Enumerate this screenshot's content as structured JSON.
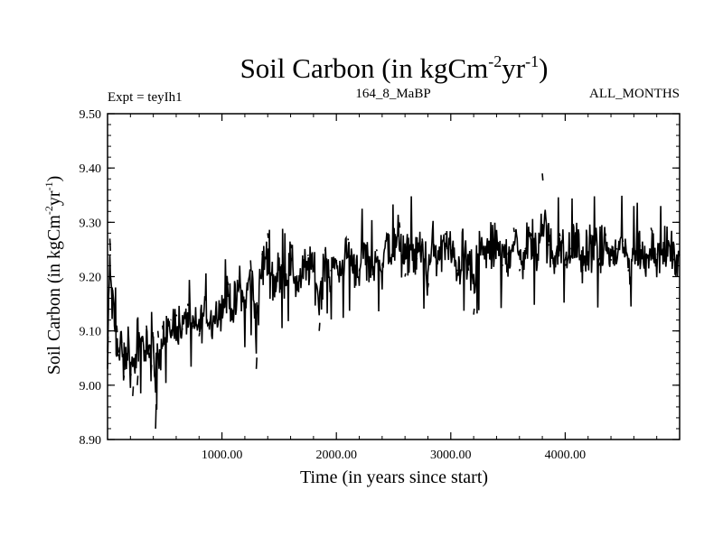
{
  "chart_data": {
    "type": "line",
    "title": "Soil Carbon (in kgCm-2yr-1)",
    "title_parts": {
      "base": "Soil Carbon (in kgCm",
      "sup1": "-2",
      "mid": "yr",
      "sup2": "-1",
      "end": ")"
    },
    "subtitle_left": "Expt = teyIh1",
    "subtitle_center": "164_8_MaBP",
    "subtitle_right": "ALL_MONTHS",
    "xlabel": "Time (in years since start)",
    "ylabel": "Soil Carbon (in kgCm-2yr-1)",
    "ylabel_parts": {
      "base": "Soil Carbon (in kgCm",
      "sup1": "-2",
      "mid": "yr",
      "sup2": "-1",
      "end": ")"
    },
    "xlim": [
      0,
      5000
    ],
    "ylim": [
      8.9,
      9.5
    ],
    "xticks": [
      1000,
      2000,
      3000,
      4000
    ],
    "xtick_labels": [
      "1000.00",
      "2000.00",
      "3000.00",
      "4000.00"
    ],
    "yticks": [
      8.9,
      9.0,
      9.1,
      9.2,
      9.3,
      9.4,
      9.5
    ],
    "ytick_labels": [
      "8.90",
      "9.00",
      "9.10",
      "9.20",
      "9.30",
      "9.40",
      "9.50"
    ],
    "grid": false,
    "legend": "none",
    "line_color": "#000000",
    "series": [
      {
        "x": [
          0,
          20,
          40,
          60,
          80,
          100,
          120,
          140,
          160,
          180,
          200,
          220,
          240,
          260,
          280,
          300,
          320,
          340,
          360,
          380,
          400,
          420,
          440,
          460,
          480,
          500,
          550,
          600,
          650,
          700,
          750,
          800,
          850,
          900,
          950,
          1000,
          1050,
          1100,
          1150,
          1200,
          1250,
          1300,
          1350,
          1400,
          1450,
          1500,
          1550,
          1600,
          1650,
          1700,
          1750,
          1800,
          1850,
          1900,
          1950,
          2000,
          2050,
          2100,
          2150,
          2200,
          2250,
          2300,
          2350,
          2400,
          2450,
          2500,
          2550,
          2600,
          2650,
          2700,
          2750,
          2800,
          2850,
          2900,
          2950,
          3000,
          3050,
          3100,
          3150,
          3200,
          3250,
          3300,
          3350,
          3400,
          3450,
          3500,
          3550,
          3600,
          3650,
          3700,
          3750,
          3800,
          3850,
          3900,
          3950,
          4000,
          4050,
          4100,
          4150,
          4200,
          4250,
          4300,
          4350,
          4400,
          4450,
          4500,
          4550,
          4600,
          4650,
          4700,
          4750,
          4800,
          4850,
          4900,
          4950,
          5000
        ],
        "y": [
          9.03,
          9.27,
          9.18,
          9.15,
          9.11,
          9.06,
          9.1,
          9.01,
          9.04,
          9.08,
          9.03,
          8.98,
          9.05,
          9.0,
          9.07,
          9.09,
          9.05,
          9.11,
          9.06,
          9.02,
          9.09,
          8.92,
          9.1,
          9.05,
          9.11,
          9.08,
          9.12,
          9.13,
          9.1,
          9.15,
          9.11,
          9.09,
          9.16,
          9.12,
          9.15,
          9.14,
          9.19,
          9.13,
          9.2,
          9.15,
          9.23,
          9.03,
          9.24,
          9.28,
          9.19,
          9.21,
          9.2,
          9.26,
          9.18,
          9.2,
          9.24,
          9.22,
          9.1,
          9.25,
          9.21,
          9.23,
          9.22,
          9.27,
          9.24,
          9.21,
          9.26,
          9.2,
          9.25,
          9.22,
          9.28,
          9.24,
          9.3,
          9.2,
          9.26,
          9.23,
          9.27,
          9.18,
          9.26,
          9.23,
          9.28,
          9.25,
          9.21,
          9.24,
          9.22,
          9.13,
          9.24,
          9.25,
          9.23,
          9.27,
          9.22,
          9.24,
          9.29,
          9.21,
          9.25,
          9.28,
          9.22,
          9.39,
          9.26,
          9.23,
          9.28,
          9.22,
          9.25,
          9.28,
          9.21,
          9.24,
          9.26,
          9.22,
          9.28,
          9.23,
          9.25,
          9.27,
          9.21,
          9.24,
          9.26,
          9.22,
          9.29,
          9.24,
          9.25,
          9.26,
          9.23,
          9.26
        ],
        "envelope_upper": [
          9.12,
          9.28,
          9.24,
          9.2,
          9.16,
          9.12,
          9.15,
          9.12,
          9.14,
          9.17,
          9.12,
          9.12,
          9.15,
          9.12,
          9.14,
          9.16,
          9.14,
          9.17,
          9.14,
          9.13,
          9.15,
          9.12,
          9.16,
          9.15,
          9.17,
          9.17,
          9.17,
          9.2,
          9.18,
          9.2,
          9.18,
          9.2,
          9.21,
          9.19,
          9.2,
          9.22,
          9.24,
          9.22,
          9.26,
          9.22,
          9.29,
          9.28,
          9.3,
          9.34,
          9.29,
          9.3,
          9.28,
          9.31,
          9.28,
          9.29,
          9.3,
          9.3,
          9.29,
          9.32,
          9.29,
          9.3,
          9.31,
          9.34,
          9.31,
          9.3,
          9.35,
          9.3,
          9.32,
          9.31,
          9.36,
          9.33,
          9.38,
          9.32,
          9.35,
          9.33,
          9.35,
          9.32,
          9.36,
          9.33,
          9.35,
          9.33,
          9.32,
          9.34,
          9.32,
          9.3,
          9.34,
          9.35,
          9.35,
          9.36,
          9.33,
          9.34,
          9.36,
          9.33,
          9.35,
          9.37,
          9.33,
          9.4,
          9.36,
          9.33,
          9.35,
          9.33,
          9.34,
          9.36,
          9.33,
          9.34,
          9.35,
          9.33,
          9.36,
          9.33,
          9.34,
          9.35,
          9.32,
          9.33,
          9.34,
          9.31,
          9.34,
          9.33,
          9.33,
          9.34,
          9.31,
          9.34
        ],
        "envelope_lower": [
          9.02,
          9.14,
          9.04,
          9.0,
          8.97,
          8.97,
          8.96,
          8.97,
          8.96,
          8.98,
          8.96,
          8.96,
          8.97,
          8.96,
          8.98,
          8.99,
          8.98,
          9.0,
          8.98,
          8.97,
          8.98,
          8.92,
          8.99,
          8.99,
          9.0,
          9.0,
          9.02,
          9.03,
          9.02,
          9.04,
          9.03,
          9.03,
          9.05,
          9.04,
          9.06,
          9.06,
          9.08,
          9.06,
          9.09,
          9.07,
          9.1,
          9.02,
          9.11,
          9.12,
          9.09,
          9.11,
          9.1,
          9.13,
          9.1,
          9.12,
          9.13,
          9.12,
          9.08,
          9.14,
          9.12,
          9.13,
          9.12,
          9.14,
          9.13,
          9.13,
          9.14,
          9.12,
          9.14,
          9.13,
          9.15,
          9.14,
          9.15,
          9.13,
          9.15,
          9.14,
          9.15,
          9.12,
          9.15,
          9.14,
          9.15,
          9.15,
          9.12,
          9.14,
          9.13,
          9.12,
          9.14,
          9.15,
          9.15,
          9.15,
          9.14,
          9.15,
          9.16,
          9.14,
          9.16,
          9.16,
          9.14,
          9.17,
          9.16,
          9.15,
          9.16,
          9.15,
          9.15,
          9.16,
          9.14,
          9.15,
          9.15,
          9.14,
          9.16,
          9.14,
          9.15,
          9.16,
          9.14,
          9.15,
          9.15,
          9.14,
          9.16,
          9.15,
          9.15,
          9.16,
          9.15,
          9.16
        ]
      }
    ]
  }
}
